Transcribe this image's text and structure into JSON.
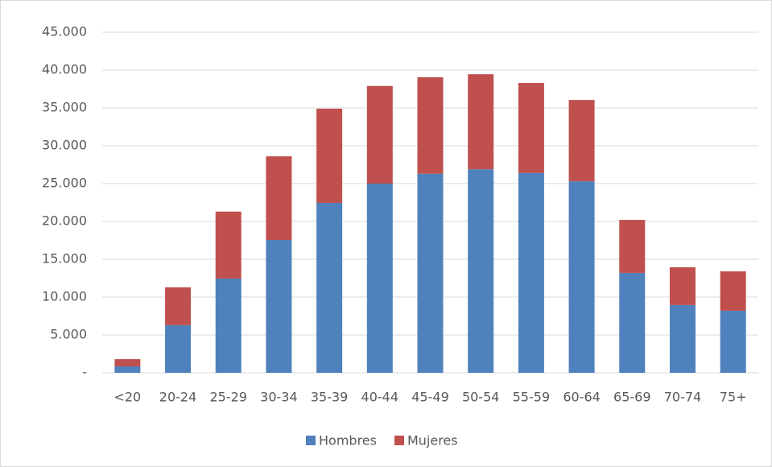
{
  "chart_data": {
    "type": "bar",
    "stacked": true,
    "categories": [
      "<20",
      "20-24",
      "25-29",
      "30-34",
      "35-39",
      "40-44",
      "45-49",
      "50-54",
      "55-59",
      "60-64",
      "65-69",
      "70-74",
      "75+"
    ],
    "series": [
      {
        "name": "Hombres",
        "color": "#4f81bd",
        "values": [
          850,
          6300,
          12450,
          17550,
          22450,
          25000,
          26300,
          26900,
          26400,
          25300,
          13200,
          8950,
          8200
        ]
      },
      {
        "name": "Mujeres",
        "color": "#c0504d",
        "values": [
          950,
          5000,
          8850,
          11050,
          12450,
          12900,
          12750,
          12550,
          11900,
          10750,
          7000,
          5000,
          5200
        ]
      }
    ],
    "ylim": [
      0,
      45000
    ],
    "yticks": [
      {
        "value": 0,
        "label": "-"
      },
      {
        "value": 5000,
        "label": "5.000"
      },
      {
        "value": 10000,
        "label": "10.000"
      },
      {
        "value": 15000,
        "label": "15.000"
      },
      {
        "value": 20000,
        "label": "20.000"
      },
      {
        "value": 25000,
        "label": "25.000"
      },
      {
        "value": 30000,
        "label": "30.000"
      },
      {
        "value": 35000,
        "label": "35.000"
      },
      {
        "value": 40000,
        "label": "40.000"
      },
      {
        "value": 45000,
        "label": "45.000"
      }
    ],
    "grid": true,
    "legend": "bottom"
  }
}
